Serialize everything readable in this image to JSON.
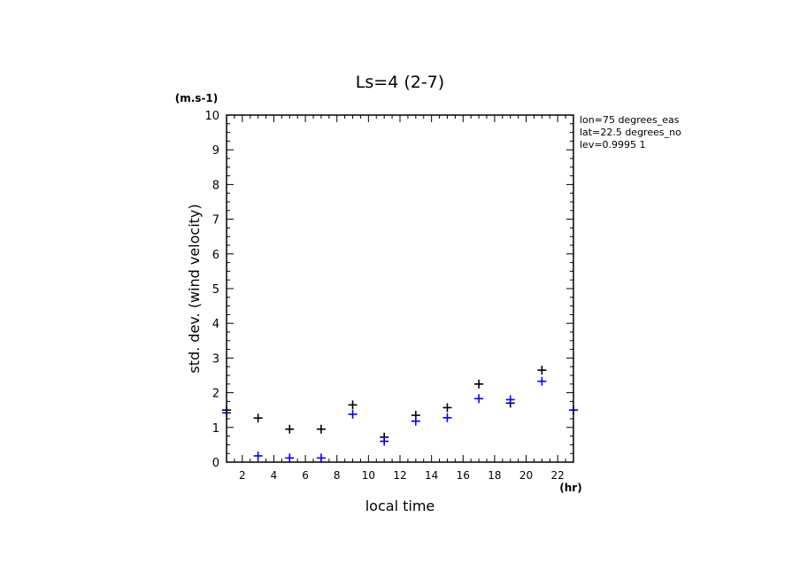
{
  "chart_data": {
    "type": "scatter",
    "title": "Ls=4 (2-7)",
    "xlabel": "local time",
    "ylabel": "std. dev. (wind velocity)",
    "x_unit": "(hr)",
    "y_unit": "(m.s-1)",
    "xlim": [
      1,
      23
    ],
    "ylim": [
      0,
      10
    ],
    "x_ticks": [
      2,
      4,
      6,
      8,
      10,
      12,
      14,
      16,
      18,
      20,
      22
    ],
    "y_ticks": [
      0,
      1,
      2,
      3,
      4,
      5,
      6,
      7,
      8,
      9,
      10
    ],
    "grid": false,
    "annotations": [
      "lon=75 degrees_eas",
      "lat=22.5 degrees_no",
      "lev=0.9995 1"
    ],
    "series": [
      {
        "color": "#000000",
        "marker": "plus",
        "x": [
          1,
          3,
          5,
          7,
          9,
          11,
          13,
          15,
          17,
          19,
          21,
          23
        ],
        "y": [
          1.5,
          1.27,
          0.95,
          0.95,
          1.65,
          0.72,
          1.35,
          1.57,
          2.25,
          1.7,
          2.65,
          1.5
        ]
      },
      {
        "color": "#0000ff",
        "marker": "plus",
        "x": [
          1,
          3,
          5,
          7,
          9,
          11,
          13,
          15,
          17,
          19,
          21,
          23
        ],
        "y": [
          1.42,
          0.18,
          0.12,
          0.12,
          1.38,
          0.6,
          1.18,
          1.28,
          1.83,
          1.8,
          2.33,
          1.5
        ]
      }
    ]
  }
}
